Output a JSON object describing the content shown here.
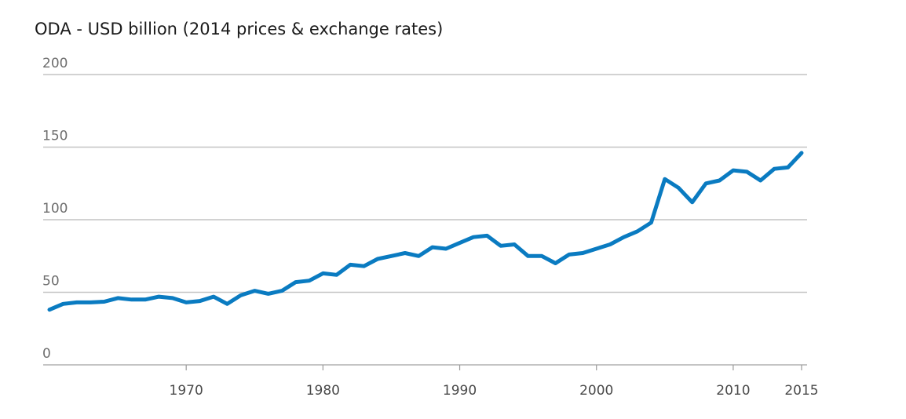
{
  "chart_data": {
    "type": "line",
    "title": "ODA - USD billion (2014 prices & exchange rates)",
    "xlabel": "",
    "ylabel": "",
    "xlim": [
      1960,
      2015
    ],
    "ylim": [
      0,
      200
    ],
    "yticks": [
      "0",
      "50",
      "100",
      "150",
      "200"
    ],
    "ytick_values": [
      0,
      50,
      100,
      150,
      200
    ],
    "xticks": [
      "1970",
      "1980",
      "1990",
      "2000",
      "2010",
      "2015"
    ],
    "xtick_values": [
      1970,
      1980,
      1990,
      2000,
      2010,
      2015
    ],
    "grid": true,
    "legend": "none",
    "color": "#0a7bc1",
    "series": [
      {
        "x": [
          1960,
          1961,
          1962,
          1963,
          1964,
          1965,
          1966,
          1967,
          1968,
          1969,
          1970,
          1971,
          1972,
          1973,
          1974,
          1975,
          1976,
          1977,
          1978,
          1979,
          1980,
          1981,
          1982,
          1983,
          1984,
          1985,
          1986,
          1987,
          1988,
          1989,
          1990,
          1991,
          1992,
          1993,
          1994,
          1995,
          1996,
          1997,
          1998,
          1999,
          2000,
          2001,
          2002,
          2003,
          2004,
          2005,
          2006,
          2007,
          2008,
          2009,
          2010,
          2011,
          2012,
          2013,
          2014,
          2015
        ],
        "values": [
          38,
          42,
          43,
          43,
          43.5,
          46,
          45,
          45,
          47,
          46,
          43,
          44,
          47,
          42,
          48,
          51,
          49,
          51,
          57,
          58,
          63,
          62,
          69,
          68,
          73,
          75,
          77,
          75,
          81,
          80,
          84,
          88,
          89,
          82,
          83,
          75,
          75,
          70,
          76,
          77,
          80,
          83,
          88,
          92,
          98,
          128,
          122,
          112,
          125,
          127,
          134,
          133,
          127,
          135,
          136,
          146
        ]
      }
    ]
  }
}
